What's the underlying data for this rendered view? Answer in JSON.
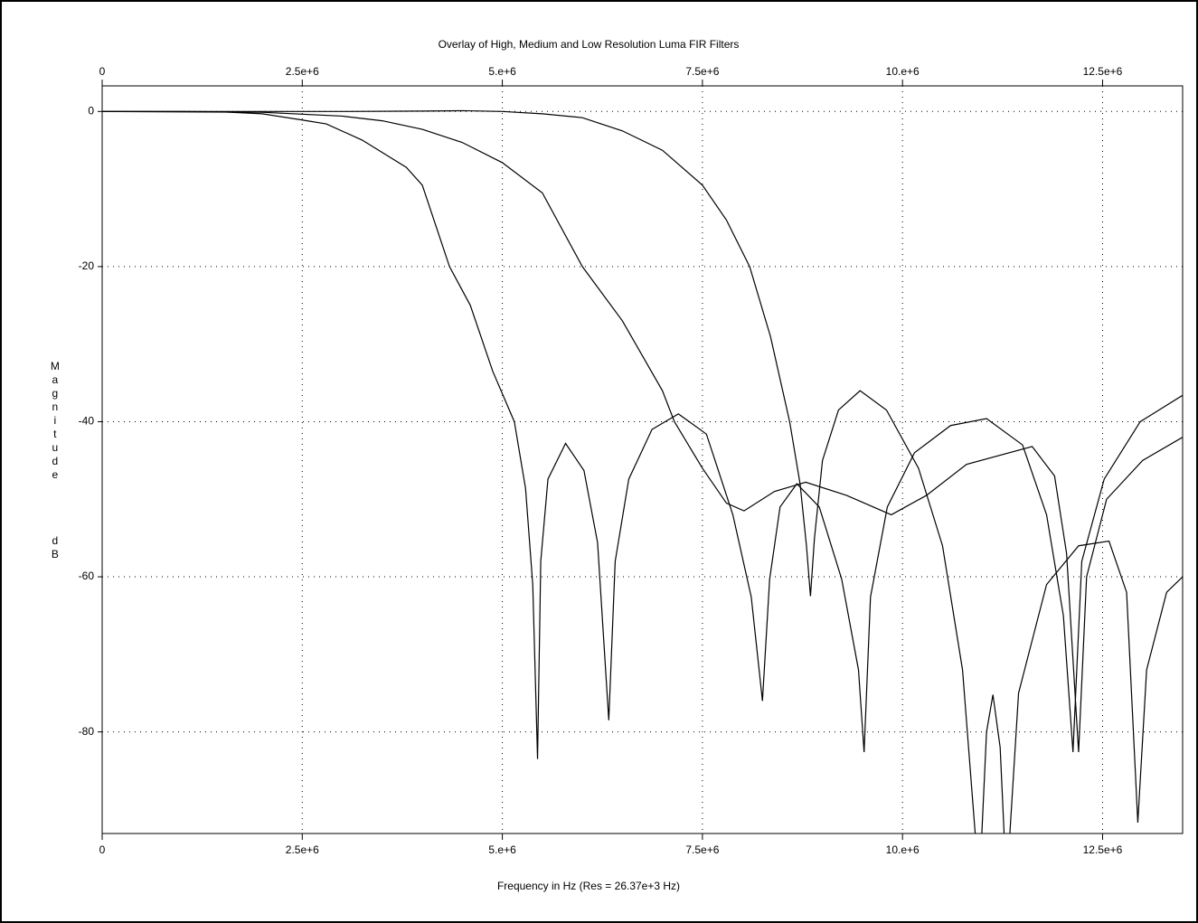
{
  "chart_data": {
    "type": "line",
    "title": "Overlay of High, Medium and Low Resolution Luma FIR Filters",
    "x_label": "Frequency in Hz (Res = 26.37e+3 Hz)",
    "y_label": [
      "Magnitude",
      "dB"
    ],
    "xlim": [
      0,
      13500000
    ],
    "ylim": [
      -93.1,
      3.3
    ],
    "xticks": [
      0,
      {
        "value": 2500000,
        "label": "2.5e+6"
      },
      {
        "value": 5000000,
        "label": "5.e+6"
      },
      {
        "value": 7500000,
        "label": "7.5e+6"
      },
      {
        "value": 10000000,
        "label": "10.e+6"
      },
      {
        "value": 12500000,
        "label": "12.5e+6"
      }
    ],
    "yticks": [
      0,
      -20,
      -40,
      -60,
      -80
    ],
    "grid": true,
    "series": [
      {
        "color": "#000000",
        "x": [
          0,
          1000000,
          1500000,
          2000000,
          2500000,
          2800000,
          3250000,
          3800000,
          4000000,
          4340000,
          4600000,
          4880000,
          5150000,
          5290000,
          5380000,
          5440000,
          5480000,
          5570000,
          5790000,
          6020000,
          6190000,
          6330000,
          6410000,
          6580000,
          6870000,
          7200000,
          7550000,
          7880000,
          8110000,
          8250000,
          8340000,
          8470000,
          8680000,
          8960000,
          9240000,
          9450000,
          9520000,
          9600000,
          9810000,
          10150000,
          10600000,
          11050000,
          11500000,
          11800000,
          12010000,
          12130000,
          12240000,
          12520000,
          12970000,
          13500000
        ],
        "values": [
          0,
          0,
          -0.05,
          -0.3,
          -1.1,
          -1.6,
          -3.7,
          -7.2,
          -9.5,
          -20,
          -25,
          -33.5,
          -40,
          -48.6,
          -61,
          -83.5,
          -58,
          -47.4,
          -42.8,
          -46.3,
          -55.6,
          -78.5,
          -58,
          -47.4,
          -41,
          -39,
          -41.6,
          -52,
          -62.6,
          -76,
          -60.3,
          -51,
          -48,
          -51,
          -60.3,
          -72,
          -82.6,
          -62.6,
          -51,
          -44,
          -40.5,
          -39.6,
          -43,
          -52,
          -65,
          -82.6,
          -58,
          -47.4,
          -40,
          -36.6
        ]
      },
      {
        "color": "#000000",
        "x": [
          0,
          2000000,
          3000000,
          3500000,
          4000000,
          4500000,
          5000000,
          5500000,
          6000000,
          6500000,
          7000000,
          7150000,
          7500000,
          7800000,
          8020000,
          8400000,
          8790000,
          9300000,
          9860000,
          10300000,
          10800000,
          11620000,
          11900000,
          12050000,
          12200000,
          12300000,
          12550000,
          13000000,
          13500000
        ],
        "values": [
          0,
          -0.1,
          -0.6,
          -1.2,
          -2.3,
          -4,
          -6.6,
          -10.5,
          -20,
          -27,
          -36,
          -40,
          -46,
          -50.5,
          -51.5,
          -49,
          -47.8,
          -49.5,
          -52,
          -49.5,
          -45.5,
          -43.2,
          -47,
          -57,
          -82.6,
          -60,
          -50,
          -45,
          -42
        ]
      },
      {
        "color": "#000000",
        "x": [
          0,
          3000000,
          4000000,
          4500000,
          5000000,
          5500000,
          6000000,
          6500000,
          7000000,
          7500000,
          7800000,
          8090000,
          8350000,
          8590000,
          8720000,
          8800000,
          8850000,
          8900000,
          9000000,
          9200000,
          9470000,
          9800000,
          10200000,
          10500000,
          10750000,
          10960000,
          11050000,
          11130000,
          11220000,
          11300000,
          11450000,
          11800000,
          12200000,
          12580000,
          12800000,
          12940000,
          13050000,
          13300000,
          13500000
        ],
        "values": [
          0,
          0,
          0.05,
          0.1,
          0,
          -0.3,
          -0.8,
          -2.5,
          -5,
          -9.5,
          -14,
          -20,
          -29,
          -40,
          -48,
          -56,
          -62.5,
          -55,
          -45,
          -38.5,
          -36,
          -38.5,
          -46,
          -56,
          -72,
          -100,
          -80,
          -75.2,
          -82,
          -100,
          -75,
          -61,
          -56,
          -55.4,
          -62,
          -91.7,
          -72,
          -62,
          -60
        ]
      }
    ]
  }
}
